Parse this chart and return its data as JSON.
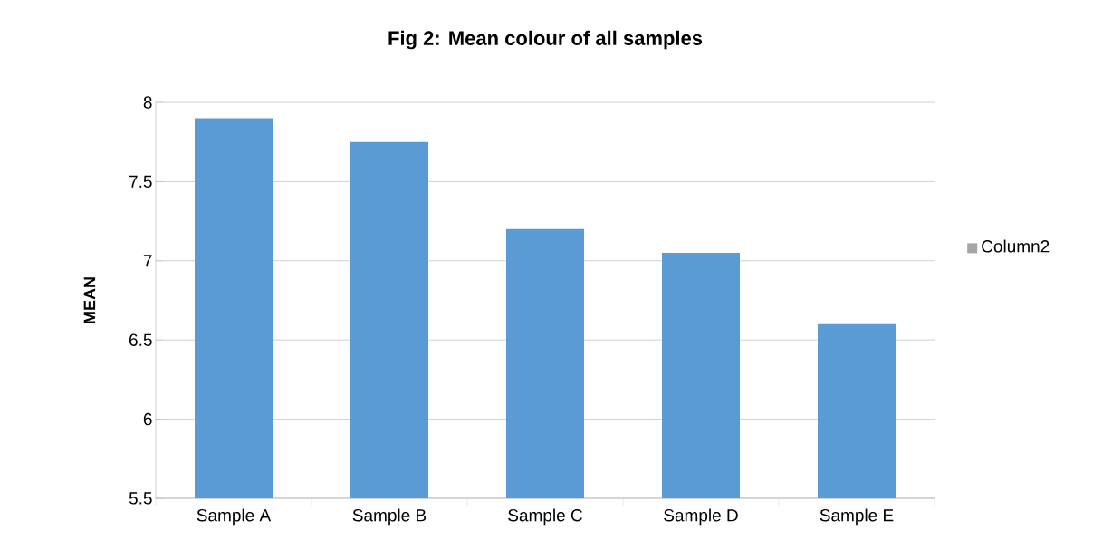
{
  "chart_data": {
    "type": "bar",
    "title": "Fig 2: Mean colour of all samples",
    "ylabel": "MEAN",
    "categories": [
      "Sample A",
      "Sample B",
      "Sample C",
      "Sample D",
      "Sample E"
    ],
    "series": [
      {
        "color": "#5b9bd5",
        "values": [
          7.9,
          7.75,
          7.2,
          7.05,
          6.6
        ]
      },
      {
        "name": "Column2",
        "color": "#a5a5a5",
        "values": [
          null,
          null,
          null,
          null,
          null
        ]
      }
    ],
    "ylim": [
      5.5,
      8
    ],
    "yticks": [
      5.5,
      6,
      6.5,
      7,
      7.5,
      8
    ],
    "grid": "y",
    "legend": "right"
  }
}
